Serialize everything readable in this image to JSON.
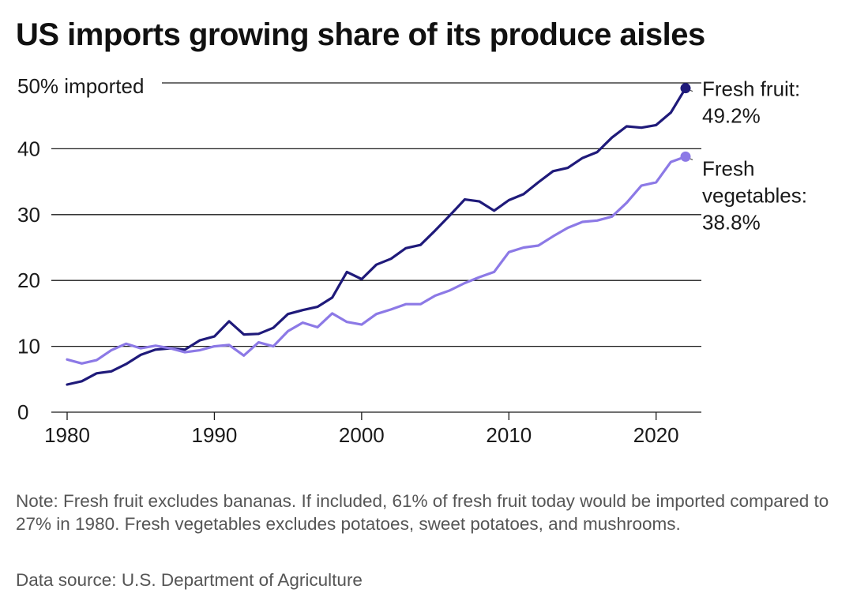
{
  "title": "US imports growing share of its produce aisles",
  "note": "Note: Fresh fruit excludes bananas. If included, 61% of fresh fruit today would be imported compared to 27% in 1980. Fresh vegetables excludes potatoes, sweet potatoes, and mushrooms.",
  "source": "Data source: U.S. Department of Agriculture",
  "chart_data": {
    "type": "line",
    "title": "US imports growing share of its produce aisles",
    "xlabel": "",
    "ylabel": "% imported",
    "xlim": [
      1979,
      2023
    ],
    "ylim": [
      0,
      50
    ],
    "grid": true,
    "x_ticks": [
      1980,
      1990,
      2000,
      2010,
      2020
    ],
    "y_ticks": [
      0,
      10,
      20,
      30,
      40,
      50
    ],
    "y_tick_labels": [
      "0",
      "10",
      "20",
      "30",
      "40",
      "50% imported"
    ],
    "x": [
      1980,
      1981,
      1982,
      1983,
      1984,
      1985,
      1986,
      1987,
      1988,
      1989,
      1990,
      1991,
      1992,
      1993,
      1994,
      1995,
      1996,
      1997,
      1998,
      1999,
      2000,
      2001,
      2002,
      2003,
      2004,
      2005,
      2006,
      2007,
      2008,
      2009,
      2010,
      2011,
      2012,
      2013,
      2014,
      2015,
      2016,
      2017,
      2018,
      2019,
      2020,
      2021,
      2022
    ],
    "series": [
      {
        "name": "Fresh fruit",
        "color": "#1f1a7a",
        "end_label": [
          "Fresh fruit:",
          "49.2%"
        ],
        "values": [
          4.2,
          4.7,
          5.9,
          6.2,
          7.3,
          8.7,
          9.5,
          9.7,
          9.5,
          10.9,
          11.5,
          13.8,
          11.8,
          11.9,
          12.8,
          14.9,
          15.5,
          16.0,
          17.4,
          21.3,
          20.2,
          22.4,
          23.3,
          24.9,
          25.4,
          27.6,
          29.9,
          32.3,
          32.0,
          30.6,
          32.2,
          33.1,
          34.9,
          36.6,
          37.1,
          38.6,
          39.5,
          41.7,
          43.4,
          43.2,
          43.6,
          45.5,
          49.2
        ]
      },
      {
        "name": "Fresh vegetables",
        "color": "#8c79e6",
        "end_label": [
          "Fresh",
          "vegetables:",
          "38.8%"
        ],
        "values": [
          8.0,
          7.4,
          7.9,
          9.4,
          10.4,
          9.7,
          10.1,
          9.7,
          9.1,
          9.4,
          10.0,
          10.2,
          8.6,
          10.6,
          10.0,
          12.3,
          13.6,
          12.9,
          15.0,
          13.7,
          13.3,
          14.9,
          15.6,
          16.4,
          16.4,
          17.7,
          18.5,
          19.6,
          20.5,
          21.3,
          24.3,
          25.0,
          25.3,
          26.7,
          28.0,
          28.9,
          29.1,
          29.7,
          31.8,
          34.4,
          34.9,
          38.0,
          38.8
        ]
      }
    ]
  }
}
